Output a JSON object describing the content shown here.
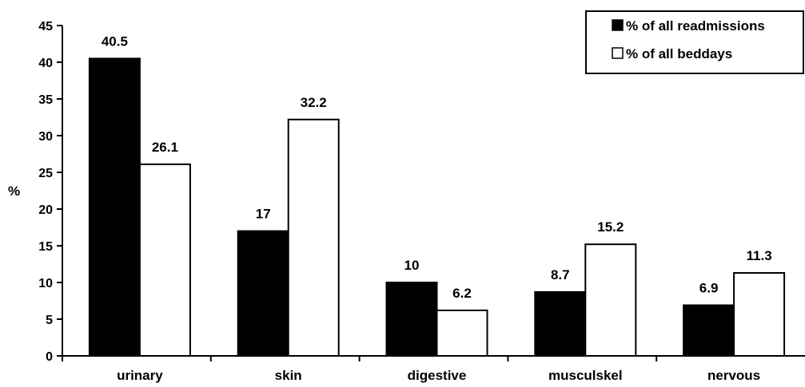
{
  "chart_data": {
    "type": "bar",
    "ylabel": "%",
    "xlabel": "",
    "ylim": [
      0,
      45
    ],
    "yticks": [
      "0",
      "5",
      "10",
      "15",
      "20",
      "25",
      "30",
      "35",
      "40",
      "45"
    ],
    "categories": [
      "urinary",
      "skin",
      "digestive",
      "musculskel",
      "nervous"
    ],
    "series": [
      {
        "name": "% of all readmissions",
        "values": [
          40.5,
          17,
          10,
          8.7,
          6.9
        ],
        "color": "#000000",
        "labels": [
          "40.5",
          "17",
          "10",
          "8.7",
          "6.9"
        ]
      },
      {
        "name": "% of all beddays",
        "values": [
          26.1,
          32.2,
          6.2,
          15.2,
          11.3
        ],
        "color": "#ffffff",
        "labels": [
          "26.1",
          "32.2",
          "6.2",
          "15.2",
          "11.3"
        ]
      }
    ],
    "legend_position": "top-right",
    "grid": false
  }
}
